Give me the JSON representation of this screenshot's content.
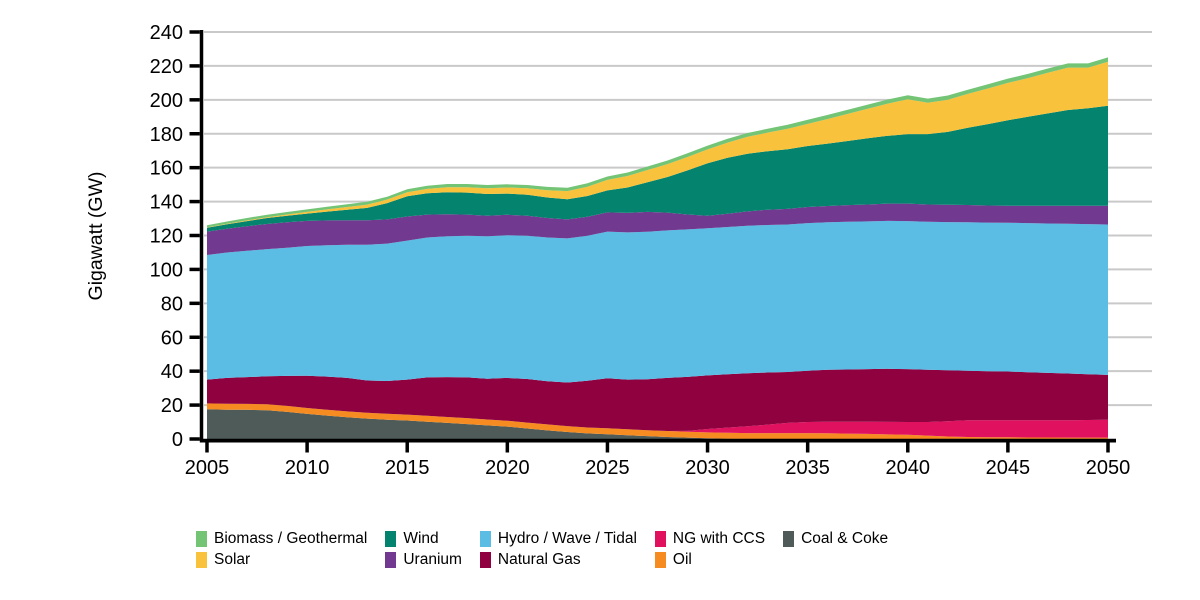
{
  "chart_data": {
    "type": "area",
    "stacked": true,
    "title": "",
    "ylabel": "Gigawatt (GW)",
    "xlabel": "",
    "x_start": 2005,
    "x_step": 1,
    "x_end": 2050,
    "x_ticks": [
      2005,
      2010,
      2015,
      2020,
      2025,
      2030,
      2035,
      2040,
      2045,
      2050
    ],
    "y_ticks": [
      0,
      20,
      40,
      60,
      80,
      100,
      120,
      140,
      160,
      180,
      200,
      220,
      240
    ],
    "ylim": [
      0,
      240
    ],
    "grid": "horizontal",
    "legend_position": "bottom",
    "axis_color": "#000000",
    "grid_color": "#c9c9c9",
    "series": [
      {
        "name": "Coal & Coke",
        "color": "#4e5b58",
        "values": [
          17.5,
          17.3,
          17.2,
          17.0,
          16.0,
          14.8,
          13.8,
          12.8,
          12.0,
          11.4,
          10.9,
          10.2,
          9.5,
          8.8,
          8.0,
          7.3,
          6.2,
          5.1,
          4.1,
          3.3,
          2.8,
          2.2,
          1.7,
          1.2,
          0.8,
          0.4,
          0.2,
          0,
          0,
          0,
          0,
          0,
          0,
          0,
          0,
          0,
          0,
          0,
          0,
          0,
          0,
          0,
          0,
          0,
          0,
          0
        ]
      },
      {
        "name": "Oil",
        "color": "#f68b21",
        "values": [
          3.5,
          3.5,
          3.5,
          3.5,
          3.5,
          3.5,
          3.5,
          3.5,
          3.5,
          3.5,
          3.5,
          3.5,
          3.5,
          3.5,
          3.5,
          3.5,
          3.5,
          3.5,
          3.5,
          3.5,
          3.5,
          3.5,
          3.5,
          3.5,
          3.5,
          3.5,
          3.5,
          3.5,
          3.5,
          3.5,
          3.5,
          3.4,
          3.2,
          3.0,
          2.7,
          2.5,
          2.0,
          1.5,
          1.2,
          1.0,
          1.0,
          0.9,
          0.9,
          0.8,
          0.8,
          0.8
        ]
      },
      {
        "name": "NG with CCS",
        "color": "#e0115f",
        "values": [
          0,
          0,
          0,
          0,
          0,
          0,
          0,
          0,
          0,
          0,
          0,
          0,
          0,
          0,
          0,
          0,
          0,
          0,
          0,
          0,
          0,
          0,
          0,
          0,
          0.5,
          2.0,
          3.0,
          4.0,
          5.0,
          6.0,
          6.5,
          6.8,
          7.0,
          7.2,
          7.4,
          7.5,
          8.0,
          9.0,
          9.8,
          10.0,
          10.0,
          10.1,
          10.2,
          10.3,
          10.4,
          10.5
        ]
      },
      {
        "name": "Natural Gas",
        "color": "#90013f",
        "values": [
          14.0,
          15.2,
          15.8,
          16.5,
          17.7,
          19.0,
          19.5,
          19.7,
          19.0,
          19.3,
          20.6,
          22.6,
          23.5,
          24.0,
          24.0,
          25.2,
          25.7,
          25.4,
          25.7,
          27.5,
          29.5,
          29.3,
          30.0,
          31.3,
          31.8,
          31.6,
          31.5,
          31.3,
          30.7,
          30.0,
          30.3,
          30.6,
          30.8,
          31.0,
          31.3,
          31.2,
          30.8,
          30.0,
          29.3,
          29.0,
          28.8,
          28.4,
          27.9,
          27.5,
          27.0,
          26.5
        ]
      },
      {
        "name": "Hydro / Wave / Tidal",
        "color": "#5bbce4",
        "values": [
          73.5,
          74.0,
          74.5,
          75.0,
          75.6,
          76.5,
          77.5,
          78.5,
          80.0,
          81.0,
          82.0,
          82.5,
          83.0,
          83.5,
          84.0,
          84.2,
          84.5,
          84.8,
          85.0,
          85.5,
          86.5,
          86.8,
          87.0,
          87.0,
          87.0,
          86.8,
          86.8,
          86.9,
          87.0,
          87.0,
          87.0,
          87.0,
          87.1,
          87.1,
          87.2,
          87.3,
          87.3,
          87.4,
          87.5,
          87.6,
          87.7,
          87.9,
          88.1,
          88.3,
          88.5,
          88.7
        ]
      },
      {
        "name": "Uranium",
        "color": "#71398f",
        "values": [
          13.8,
          14.0,
          14.5,
          14.8,
          15.0,
          14.8,
          14.6,
          14.5,
          14.5,
          14.3,
          14.2,
          13.5,
          13.0,
          12.5,
          12.2,
          12.0,
          11.8,
          11.5,
          11.2,
          11.2,
          11.3,
          11.5,
          11.7,
          10.5,
          8.8,
          7.3,
          7.8,
          8.5,
          9.0,
          9.2,
          9.5,
          9.6,
          9.8,
          10.0,
          10.2,
          10.3,
          10.2,
          10.2,
          10.2,
          10.1,
          10.0,
          10.2,
          10.4,
          10.6,
          10.8,
          11.0
        ]
      },
      {
        "name": "Wind",
        "color": "#04846e",
        "values": [
          2.3,
          2.6,
          3.0,
          3.5,
          3.9,
          4.3,
          5.2,
          6.2,
          7.3,
          9.6,
          12.0,
          12.6,
          13.0,
          13.0,
          12.8,
          12.5,
          12.3,
          12.1,
          11.9,
          12.3,
          13.0,
          15.0,
          17.5,
          21.0,
          26.0,
          31.0,
          33.0,
          34.0,
          34.5,
          35.2,
          36.0,
          36.8,
          37.8,
          39.0,
          40.0,
          41.0,
          41.5,
          43.0,
          45.5,
          48.0,
          50.5,
          52.5,
          54.5,
          56.5,
          57.5,
          59.0
        ]
      },
      {
        "name": "Solar",
        "color": "#f9c23c",
        "values": [
          0.2,
          0.3,
          0.4,
          0.5,
          0.7,
          1.0,
          1.3,
          1.6,
          1.9,
          2.1,
          2.3,
          2.6,
          3.0,
          3.2,
          3.4,
          3.6,
          3.9,
          4.3,
          4.8,
          5.5,
          6.2,
          6.8,
          7.2,
          7.6,
          7.9,
          8.2,
          9.0,
          10.0,
          11.0,
          12.0,
          13.0,
          14.5,
          16.0,
          17.5,
          19.0,
          20.5,
          18.5,
          19.0,
          20.0,
          21.0,
          22.0,
          22.8,
          24.0,
          25.0,
          24.0,
          26.0
        ]
      },
      {
        "name": "Biomass / Geothermal",
        "color": "#74c476",
        "values": [
          1.3,
          1.35,
          1.4,
          1.45,
          1.45,
          1.5,
          1.55,
          1.6,
          1.65,
          1.7,
          1.8,
          1.8,
          1.85,
          1.85,
          1.9,
          1.9,
          1.9,
          1.95,
          1.95,
          2.0,
          2.0,
          2.05,
          2.1,
          2.1,
          2.15,
          2.2,
          2.25,
          2.25,
          2.3,
          2.35,
          2.4,
          2.4,
          2.4,
          2.4,
          2.4,
          2.4,
          2.45,
          2.45,
          2.45,
          2.5,
          2.5,
          2.5,
          2.5,
          2.5,
          2.5,
          2.5
        ]
      }
    ],
    "legend_columns": [
      [
        "Biomass / Geothermal",
        "Solar"
      ],
      [
        "Wind",
        "Uranium"
      ],
      [
        "Hydro / Wave / Tidal",
        "Natural Gas"
      ],
      [
        "NG with CCS",
        "Oil"
      ],
      [
        "Coal & Coke"
      ]
    ]
  }
}
